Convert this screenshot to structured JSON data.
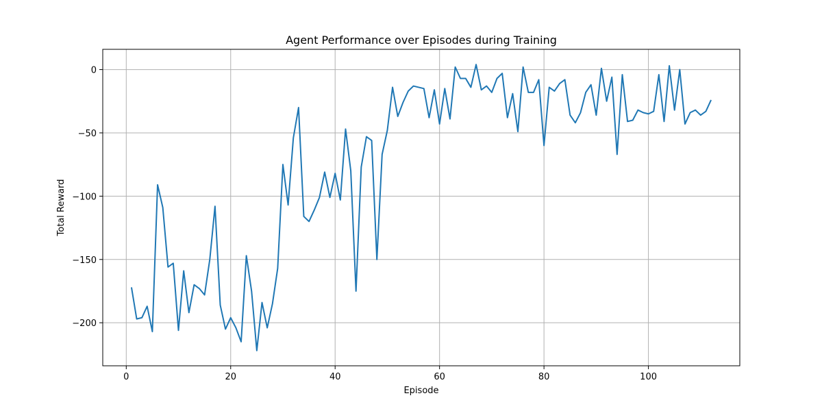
{
  "chart_data": {
    "type": "line",
    "title": "Agent Performance over Episodes during Training",
    "xlabel": "Episode",
    "ylabel": "Total Reward",
    "xlim": [
      -4.5,
      117.5
    ],
    "ylim": [
      -234,
      16
    ],
    "xticks": [
      0,
      20,
      40,
      60,
      80,
      100
    ],
    "yticks": [
      0,
      -50,
      -100,
      -150,
      -200
    ],
    "grid": true,
    "line_color": "#1f77b4",
    "grid_color": "#b0b0b0",
    "x": [
      1,
      2,
      3,
      4,
      5,
      6,
      7,
      8,
      9,
      10,
      11,
      12,
      13,
      14,
      15,
      16,
      17,
      18,
      19,
      20,
      21,
      22,
      23,
      24,
      25,
      26,
      27,
      28,
      29,
      30,
      31,
      32,
      33,
      34,
      35,
      36,
      37,
      38,
      39,
      40,
      41,
      42,
      43,
      44,
      45,
      46,
      47,
      48,
      49,
      50,
      51,
      52,
      53,
      54,
      55,
      56,
      57,
      58,
      59,
      60,
      61,
      62,
      63,
      64,
      65,
      66,
      67,
      68,
      69,
      70,
      71,
      72,
      73,
      74,
      75,
      76,
      77,
      78,
      79,
      80,
      81,
      82,
      83,
      84,
      85,
      86,
      87,
      88,
      89,
      90,
      91,
      92,
      93,
      94,
      95,
      96,
      97,
      98,
      99,
      100,
      101,
      102,
      103,
      104,
      105,
      106,
      107,
      108,
      109,
      110,
      111,
      112
    ],
    "y": [
      -172,
      -197,
      -196,
      -187,
      -207,
      -91,
      -109,
      -156,
      -153,
      -206,
      -159,
      -192,
      -170,
      -173,
      -178,
      -150,
      -108,
      -186,
      -205,
      -196,
      -204,
      -215,
      -147,
      -175,
      -222,
      -184,
      -204,
      -185,
      -157,
      -75,
      -107,
      -54,
      -30,
      -116,
      -120,
      -111,
      -101,
      -81,
      -101,
      -82,
      -103,
      -47,
      -80,
      -175,
      -77,
      -53,
      -56,
      -150,
      -67,
      -48,
      -14,
      -37,
      -26,
      -17,
      -13,
      -14,
      -15,
      -38,
      -16,
      -43,
      -15,
      -39,
      2,
      -7,
      -7,
      -14,
      4,
      -16,
      -13,
      -18,
      -7,
      -3,
      -38,
      -19,
      -49,
      2,
      -18,
      -18,
      -8,
      -60,
      -14,
      -17,
      -11,
      -8,
      -36,
      -42,
      -34,
      -18,
      -12,
      -36,
      1,
      -25,
      -6,
      -67,
      -4,
      -41,
      -40,
      -32,
      -34,
      -35,
      -33,
      -4,
      -41,
      3,
      -32,
      0,
      -43,
      -34,
      -32,
      -36,
      -33,
      -24
    ]
  }
}
